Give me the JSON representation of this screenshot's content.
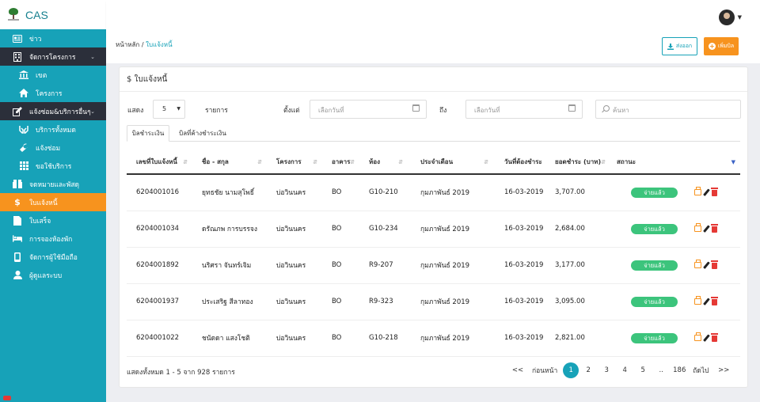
{
  "app": {
    "title": "CAS"
  },
  "sidebar": {
    "items": [
      {
        "label": "ข่าว",
        "icon": "news-icon"
      },
      {
        "label": "จัดการโครงการ",
        "icon": "building-icon",
        "expanded": true
      },
      {
        "label": "เขต",
        "icon": "bank-icon"
      },
      {
        "label": "โครงการ",
        "icon": "home-icon"
      },
      {
        "label": "แจ้งซ่อม&บริการอื่นๆ",
        "icon": "edit-icon",
        "expanded": true
      },
      {
        "label": "บริการทั้งหมด",
        "icon": "hands-icon"
      },
      {
        "label": "แจ้งซ่อม",
        "icon": "wrench-icon"
      },
      {
        "label": "ขอใช้บริการ",
        "icon": "grid-icon"
      },
      {
        "label": "จดหมายและพัสดุ",
        "icon": "package-icon"
      },
      {
        "label": "ใบแจ้งหนี้",
        "icon": "dollar-icon",
        "active": true
      },
      {
        "label": "ใบเสร็จ",
        "icon": "document-icon"
      },
      {
        "label": "การจองห้องพัก",
        "icon": "bed-icon"
      },
      {
        "label": "จัดการผู้ใช้มือถือ",
        "icon": "mobile-icon"
      },
      {
        "label": "ผู้ดูแลระบบ",
        "icon": "user-icon"
      }
    ]
  },
  "breadcrumb": {
    "home": "หน้าหลัก",
    "separator": "/",
    "current": "ใบแจ้งหนี้"
  },
  "toolbar": {
    "export_label": "ส่งออก",
    "add_label": "เพิ่มบิล"
  },
  "card": {
    "title": "$ ใบแจ้งหนี้"
  },
  "filters": {
    "show_label": "แสดง",
    "page_size": "5",
    "items_label": "รายการ",
    "from_label": "ตั้งแต่",
    "from_placeholder": "เลือกวันที่",
    "to_label": "ถึง",
    "to_placeholder": "เลือกวันที่",
    "search_placeholder": "ค้นหา"
  },
  "tabs": [
    {
      "label": "บิลชำระเงิน",
      "active": true
    },
    {
      "label": "บิลที่ค้างชำระเงิน",
      "active": false
    }
  ],
  "table": {
    "headers": [
      "เลขที่ใบแจ้งหนี้",
      "ชื่อ - สกุล",
      "โครงการ",
      "อาคาร",
      "ห้อง",
      "ประจำเดือน",
      "วันที่ต้องชำระ",
      "ยอดชำระ (บาท)",
      "สถานะ"
    ],
    "rows": [
      {
        "no": "6204001016",
        "name": "ยุทธชัย นามสุโพธิ์",
        "project": "บ่อวินนคร",
        "building": "BO",
        "room": "G10-210",
        "month": "กุมภาพันธ์ 2019",
        "due": "16-03-2019",
        "amount": "3,707.00",
        "status": "จ่ายแล้ว"
      },
      {
        "no": "6204001034",
        "name": "ดรัณภพ การบรรจง",
        "project": "บ่อวินนคร",
        "building": "BO",
        "room": "G10-234",
        "month": "กุมภาพันธ์ 2019",
        "due": "16-03-2019",
        "amount": "2,684.00",
        "status": "จ่ายแล้ว"
      },
      {
        "no": "6204001892",
        "name": "นริศรา จันทร์เจิม",
        "project": "บ่อวินนคร",
        "building": "BO",
        "room": "R9-207",
        "month": "กุมภาพันธ์ 2019",
        "due": "16-03-2019",
        "amount": "3,177.00",
        "status": "จ่ายแล้ว"
      },
      {
        "no": "6204001937",
        "name": "ประเสริฐ สีลาทอง",
        "project": "บ่อวินนคร",
        "building": "BO",
        "room": "R9-323",
        "month": "กุมภาพันธ์ 2019",
        "due": "16-03-2019",
        "amount": "3,095.00",
        "status": "จ่ายแล้ว"
      },
      {
        "no": "6204001022",
        "name": "ชนัดดา แสงโชติ",
        "project": "บ่อวินนคร",
        "building": "BO",
        "room": "G10-218",
        "month": "กุมภาพันธ์ 2019",
        "due": "16-03-2019",
        "amount": "2,821.00",
        "status": "จ่ายแล้ว"
      }
    ]
  },
  "footer": {
    "info": "แสดงทั้งหมด 1 - 5 จาก 928 รายการ"
  },
  "pagination": {
    "first": "<<",
    "prev": "ก่อนหน้า",
    "pages": [
      "1",
      "2",
      "3",
      "4",
      "5",
      "..",
      "186"
    ],
    "active": "1",
    "next": "ถัดไป",
    "last": ">>"
  },
  "colors": {
    "sidebar": "#17a2b8",
    "accent": "#f7931e",
    "paid": "#3cc47c",
    "dark": "#2b2f3a"
  }
}
